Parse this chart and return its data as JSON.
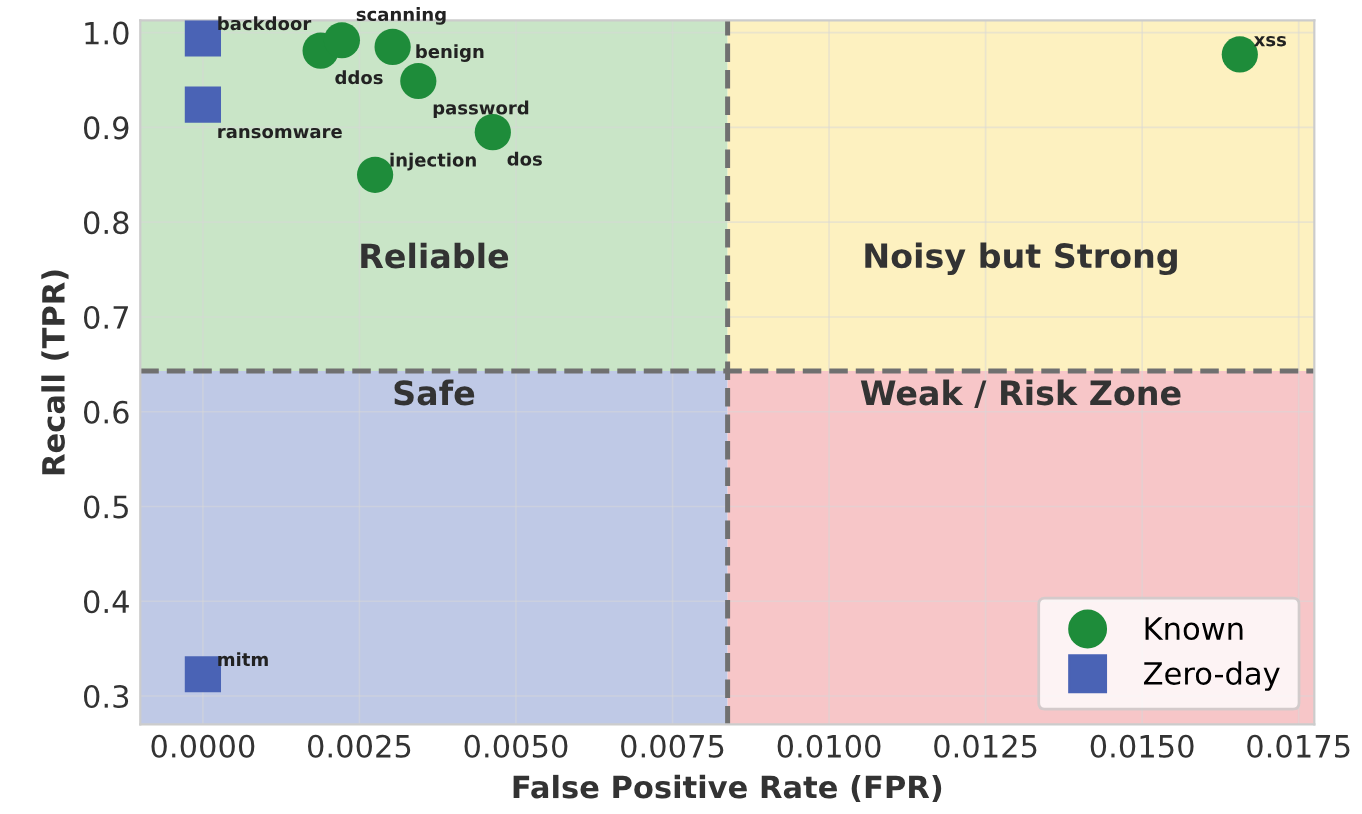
{
  "chart_data": {
    "type": "scatter",
    "xlabel": "False Positive Rate (FPR)",
    "ylabel": "Recall (TPR)",
    "series": [
      {
        "name": "Known",
        "color": "#1e8c3a",
        "marker": "circle",
        "x": [
          0.00188,
          0.00222,
          0.00303,
          0.00344,
          0.00463,
          0.00275,
          0.01656
        ],
        "values": [
          0.981,
          0.992,
          0.985,
          0.949,
          0.895,
          0.85,
          0.977
        ]
      },
      {
        "name": "Zero-day",
        "color": "#4a63b5",
        "marker": "square",
        "x": [
          0,
          0,
          0
        ],
        "values": [
          0.994,
          0.924,
          0.323
        ]
      }
    ],
    "annotations": [
      {
        "text": "ddos",
        "x": 0.00188,
        "y": 0.981
      },
      {
        "text": "scanning",
        "x": 0.00222,
        "y": 0.992
      },
      {
        "text": "benign",
        "x": 0.00303,
        "y": 0.985
      },
      {
        "text": "password",
        "x": 0.00344,
        "y": 0.949
      },
      {
        "text": "dos",
        "x": 0.00463,
        "y": 0.895
      },
      {
        "text": "injection",
        "x": 0.00275,
        "y": 0.85
      },
      {
        "text": "xss",
        "x": 0.01656,
        "y": 0.977
      },
      {
        "text": "backdoor",
        "x": 0,
        "y": 0.994
      },
      {
        "text": "ransomware",
        "x": 0,
        "y": 0.924
      },
      {
        "text": "mitm",
        "x": 0,
        "y": 0.323
      },
      "Reliable",
      "Noisy but Strong",
      "Safe",
      "Weak / Risk Zone"
    ],
    "ref_lines": [
      {
        "axis": "x",
        "value": 0.00838,
        "color": "#707070",
        "line_style": "dashed"
      },
      {
        "axis": "y",
        "value": 0.643,
        "color": "#707070",
        "line_style": "dashed"
      }
    ],
    "xlim": [
      -0.001,
      0.01775
    ],
    "ylim": [
      0.27,
      1.013
    ],
    "xticks": [
      {
        "value": 0,
        "label": "0.0000"
      },
      {
        "value": 0.0025,
        "label": "0.0025"
      },
      {
        "value": 0.005,
        "label": "0.0050"
      },
      {
        "value": 0.0075,
        "label": "0.0075"
      },
      {
        "value": 0.01,
        "label": "0.0100"
      },
      {
        "value": 0.0125,
        "label": "0.0125"
      },
      {
        "value": 0.015,
        "label": "0.0150"
      },
      {
        "value": 0.0175,
        "label": "0.0175"
      }
    ],
    "yticks": [
      0.3,
      0.4,
      0.5,
      0.6,
      0.7,
      0.8,
      0.9,
      {
        "value": 1.0,
        "label": "1.0"
      }
    ],
    "grid": true,
    "legend": "bottom right"
  }
}
